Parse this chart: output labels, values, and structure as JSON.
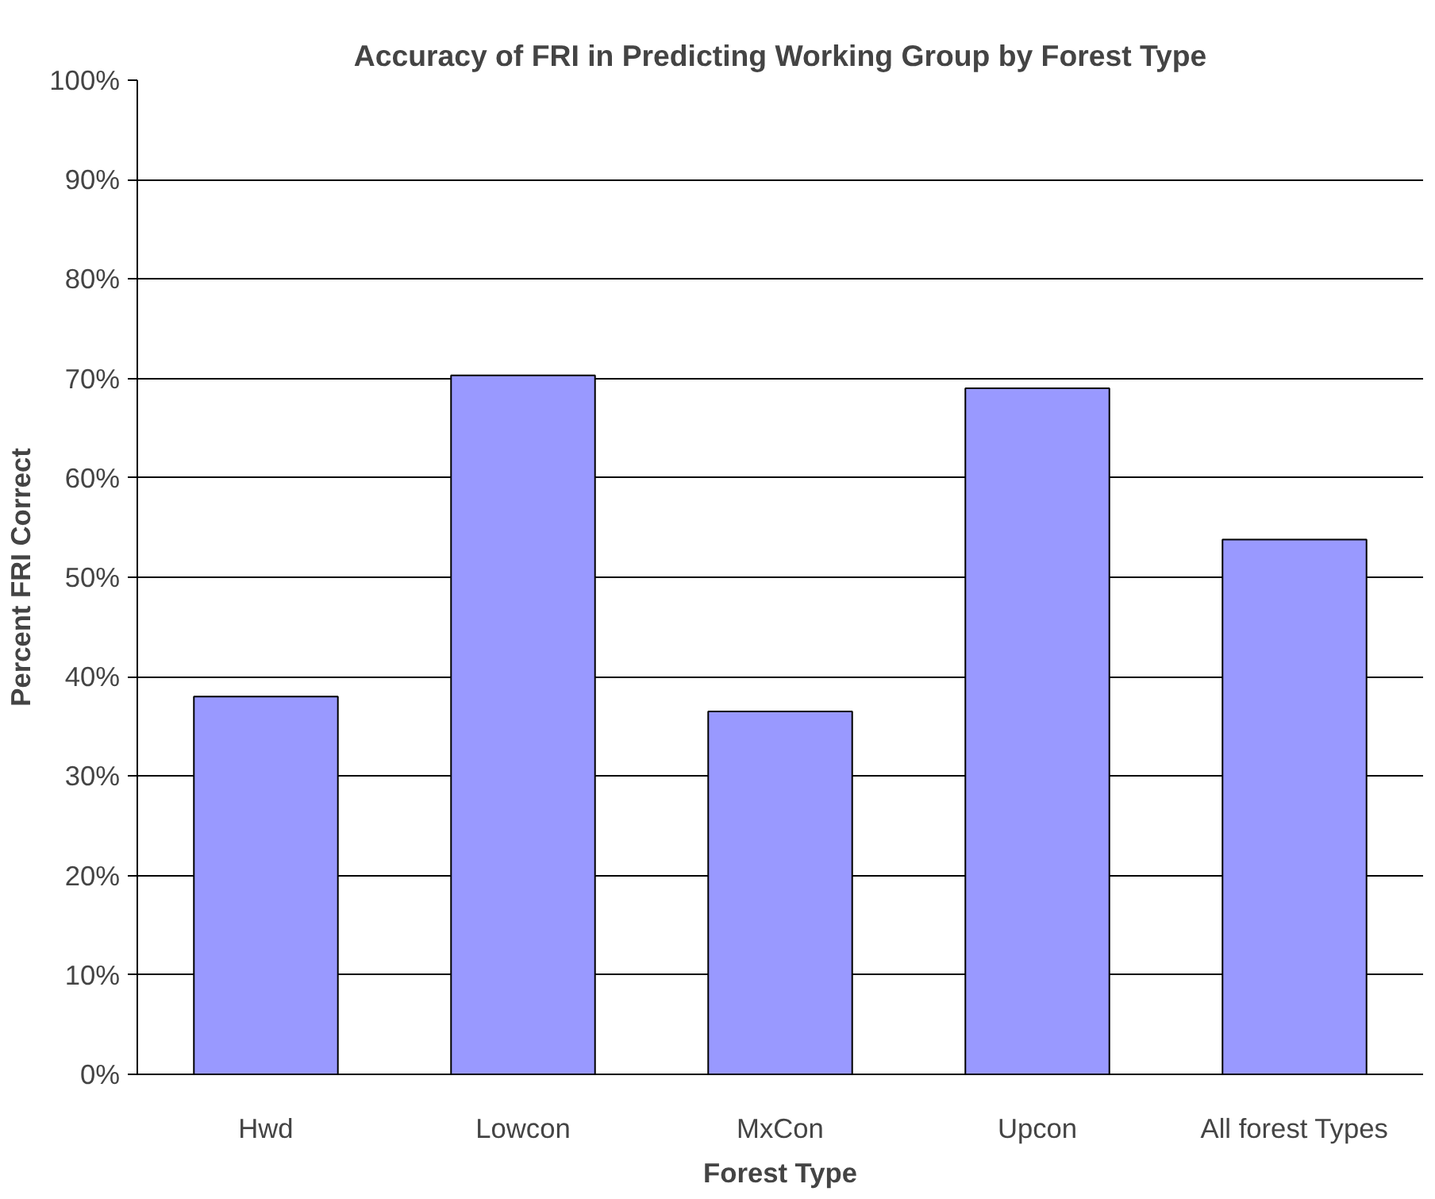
{
  "chart_data": {
    "type": "bar",
    "title": "Accuracy of FRI in Predicting Working Group by Forest Type",
    "xlabel": "Forest Type",
    "ylabel": "Percent FRI Correct",
    "categories": [
      "Hwd",
      "Lowcon",
      "MxCon",
      "Upcon",
      "All forest Types"
    ],
    "values": [
      38.0,
      70.3,
      36.5,
      69.0,
      53.8
    ],
    "color": "#9999ff",
    "ylim": [
      0,
      100
    ],
    "yticks": [
      {
        "value": 0,
        "label": "0%"
      },
      {
        "value": 10,
        "label": "10%"
      },
      {
        "value": 20,
        "label": "20%"
      },
      {
        "value": 30,
        "label": "30%"
      },
      {
        "value": 40,
        "label": "40%"
      },
      {
        "value": 50,
        "label": "50%"
      },
      {
        "value": 60,
        "label": "60%"
      },
      {
        "value": 70,
        "label": "70%"
      },
      {
        "value": 80,
        "label": "80%"
      },
      {
        "value": 90,
        "label": "90%"
      },
      {
        "value": 100,
        "label": "100%"
      }
    ],
    "grid": "y"
  }
}
